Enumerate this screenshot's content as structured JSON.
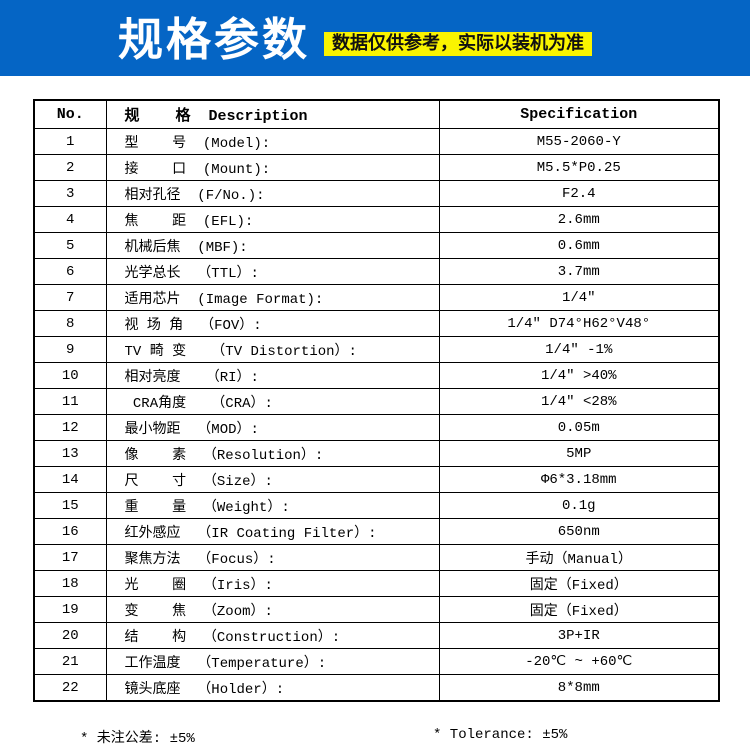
{
  "header": {
    "title": "规格参数",
    "badge": "数据仅供参考，实际以装机为准",
    "colors": {
      "banner_bg": "#0565C5",
      "title_text": "#FFFFFF",
      "badge_bg": "#FAF400",
      "badge_text": "#111111",
      "table_border": "#000000"
    }
  },
  "table": {
    "columns": [
      "No.",
      "规    格  Description",
      "Specification"
    ],
    "rows": [
      {
        "no": "1",
        "description": "型    号  (Model):",
        "specification": "M55-2060-Y"
      },
      {
        "no": "2",
        "description": "接    口  (Mount):",
        "specification": "M5.5*P0.25"
      },
      {
        "no": "3",
        "description": "相对孔径  (F/No.):",
        "specification": "F2.4"
      },
      {
        "no": "4",
        "description": "焦    距  (EFL):",
        "specification": "2.6mm"
      },
      {
        "no": "5",
        "description": "机械后焦  (MBF):",
        "specification": "0.6mm"
      },
      {
        "no": "6",
        "description": "光学总长  （TTL）:",
        "specification": "3.7mm"
      },
      {
        "no": "7",
        "description": "适用芯片  (Image Format):",
        "specification": "1/4″"
      },
      {
        "no": "8",
        "description": "视 场 角  （FOV）:",
        "specification": "1/4″ D74°H62°V48°"
      },
      {
        "no": "9",
        "description": "TV 畸 变   （TV Distortion）:",
        "specification": "1/4″ -1%"
      },
      {
        "no": "10",
        "description": "相对亮度   （RI）:",
        "specification": "1/4″ >40%"
      },
      {
        "no": "11",
        "description": " CRA角度   （CRA）:",
        "specification": "1/4″ <28%"
      },
      {
        "no": "12",
        "description": "最小物距  （MOD）:",
        "specification": "0.05m"
      },
      {
        "no": "13",
        "description": "像    素  （Resolution）:",
        "specification": "5MP"
      },
      {
        "no": "14",
        "description": "尺    寸  （Size）:",
        "specification": "Φ6*3.18mm"
      },
      {
        "no": "15",
        "description": "重    量  （Weight）:",
        "specification": "0.1g"
      },
      {
        "no": "16",
        "description": "红外感应  （IR Coating Filter）:",
        "specification": "650nm"
      },
      {
        "no": "17",
        "description": "聚焦方法  （Focus）:",
        "specification": "手动（Manual）"
      },
      {
        "no": "18",
        "description": "光    圈  （Iris）:",
        "specification": "固定（Fixed）"
      },
      {
        "no": "19",
        "description": "变    焦  （Zoom）:",
        "specification": "固定（Fixed）"
      },
      {
        "no": "20",
        "description": "结    构  （Construction）:",
        "specification": "3P+IR"
      },
      {
        "no": "21",
        "description": "工作温度  （Temperature）:",
        "specification": "-20℃ ~ +60℃"
      },
      {
        "no": "22",
        "description": "镜头底座  （Holder）:",
        "specification": "8*8mm"
      }
    ]
  },
  "footer": {
    "left": "* 未注公差: ±5%",
    "right": "* Tolerance: ±5%"
  }
}
